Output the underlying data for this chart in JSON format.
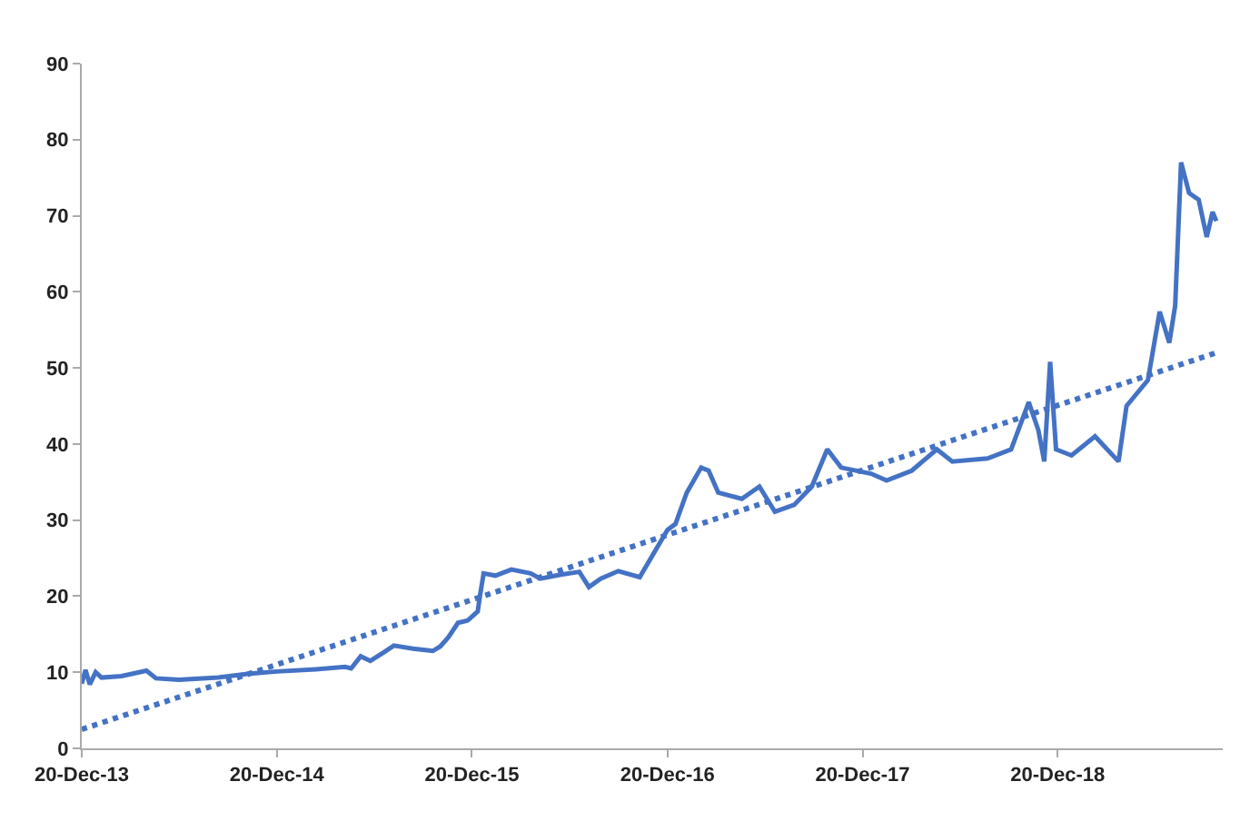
{
  "chart_data": {
    "type": "line",
    "xlim": [
      "2013-12-20",
      "2019-10-25"
    ],
    "ylim": [
      0,
      90
    ],
    "yticks": [
      0,
      10,
      20,
      30,
      40,
      50,
      60,
      70,
      80,
      90
    ],
    "xticks": [
      {
        "value": "2013-12-20",
        "label": "20-Dec-13"
      },
      {
        "value": "2014-12-20",
        "label": "20-Dec-14"
      },
      {
        "value": "2015-12-20",
        "label": "20-Dec-15"
      },
      {
        "value": "2016-12-20",
        "label": "20-Dec-16"
      },
      {
        "value": "2017-12-20",
        "label": "20-Dec-17"
      },
      {
        "value": "2018-12-20",
        "label": "20-Dec-18"
      }
    ],
    "grid": false,
    "marker": "none",
    "series": [
      {
        "color": "#4472c4",
        "line_style": "solid",
        "x": [
          "2013-12-20",
          "2013-12-27",
          "2014-01-04",
          "2014-01-15",
          "2014-01-26",
          "2014-03-04",
          "2014-04-20",
          "2014-05-08",
          "2014-06-20",
          "2014-09-01",
          "2014-10-26",
          "2014-12-20",
          "2015-03-03",
          "2015-04-27",
          "2015-05-08",
          "2015-05-26",
          "2015-06-13",
          "2015-07-08",
          "2015-07-27",
          "2015-09-01",
          "2015-10-08",
          "2015-10-22",
          "2015-11-06",
          "2015-11-24",
          "2015-12-12",
          "2015-12-31",
          "2016-01-04",
          "2016-01-11",
          "2016-02-02",
          "2016-03-03",
          "2016-04-08",
          "2016-04-26",
          "2016-06-01",
          "2016-07-08",
          "2016-07-26",
          "2016-08-17",
          "2016-09-19",
          "2016-10-29",
          "2016-12-20",
          "2017-01-04",
          "2017-01-25",
          "2017-02-21",
          "2017-03-07",
          "2017-03-25",
          "2017-05-08",
          "2017-06-10",
          "2017-07-09",
          "2017-08-14",
          "2017-09-16",
          "2017-10-15",
          "2017-11-10",
          "2018-01-05",
          "2018-02-03",
          "2018-03-22",
          "2018-05-08",
          "2018-06-06",
          "2018-08-11",
          "2018-09-24",
          "2018-10-27",
          "2018-11-14",
          "2018-11-25",
          "2018-12-06",
          "2018-12-17",
          "2019-01-15",
          "2019-02-28",
          "2019-04-13",
          "2019-04-28",
          "2019-06-07",
          "2019-06-29",
          "2019-07-17",
          "2019-07-28",
          "2019-08-08",
          "2019-08-23",
          "2019-09-10",
          "2019-09-25",
          "2019-10-06",
          "2019-10-13"
        ],
        "values": [
          8.5,
          10.3,
          8.4,
          10,
          9.3,
          9.5,
          10.2,
          9.2,
          9,
          9.3,
          9.8,
          10.1,
          10.4,
          10.7,
          10.5,
          12.1,
          11.5,
          12.6,
          13.5,
          13.1,
          12.8,
          13.4,
          14.6,
          16.5,
          16.8,
          18,
          20,
          23,
          22.7,
          23.5,
          23,
          22.3,
          22.8,
          23.2,
          21.2,
          22.3,
          23.3,
          22.5,
          28.7,
          29.5,
          33.6,
          36.9,
          36.5,
          33.6,
          32.8,
          34.4,
          31.1,
          32,
          34.4,
          39.3,
          36.9,
          36.1,
          35.2,
          36.5,
          39.3,
          37.7,
          38.1,
          39.3,
          45.5,
          41.8,
          37.7,
          50.8,
          39.3,
          38.5,
          41,
          37.7,
          45,
          48.4,
          57.4,
          53.3,
          58.2,
          77,
          73,
          72.1,
          67.2,
          70.5,
          69.3
        ]
      },
      {
        "type": "line",
        "color": "#4472c4",
        "line_style": "dotted",
        "x": [
          "2013-12-20",
          "2019-10-13"
        ],
        "values": [
          2.5,
          52
        ]
      }
    ]
  }
}
